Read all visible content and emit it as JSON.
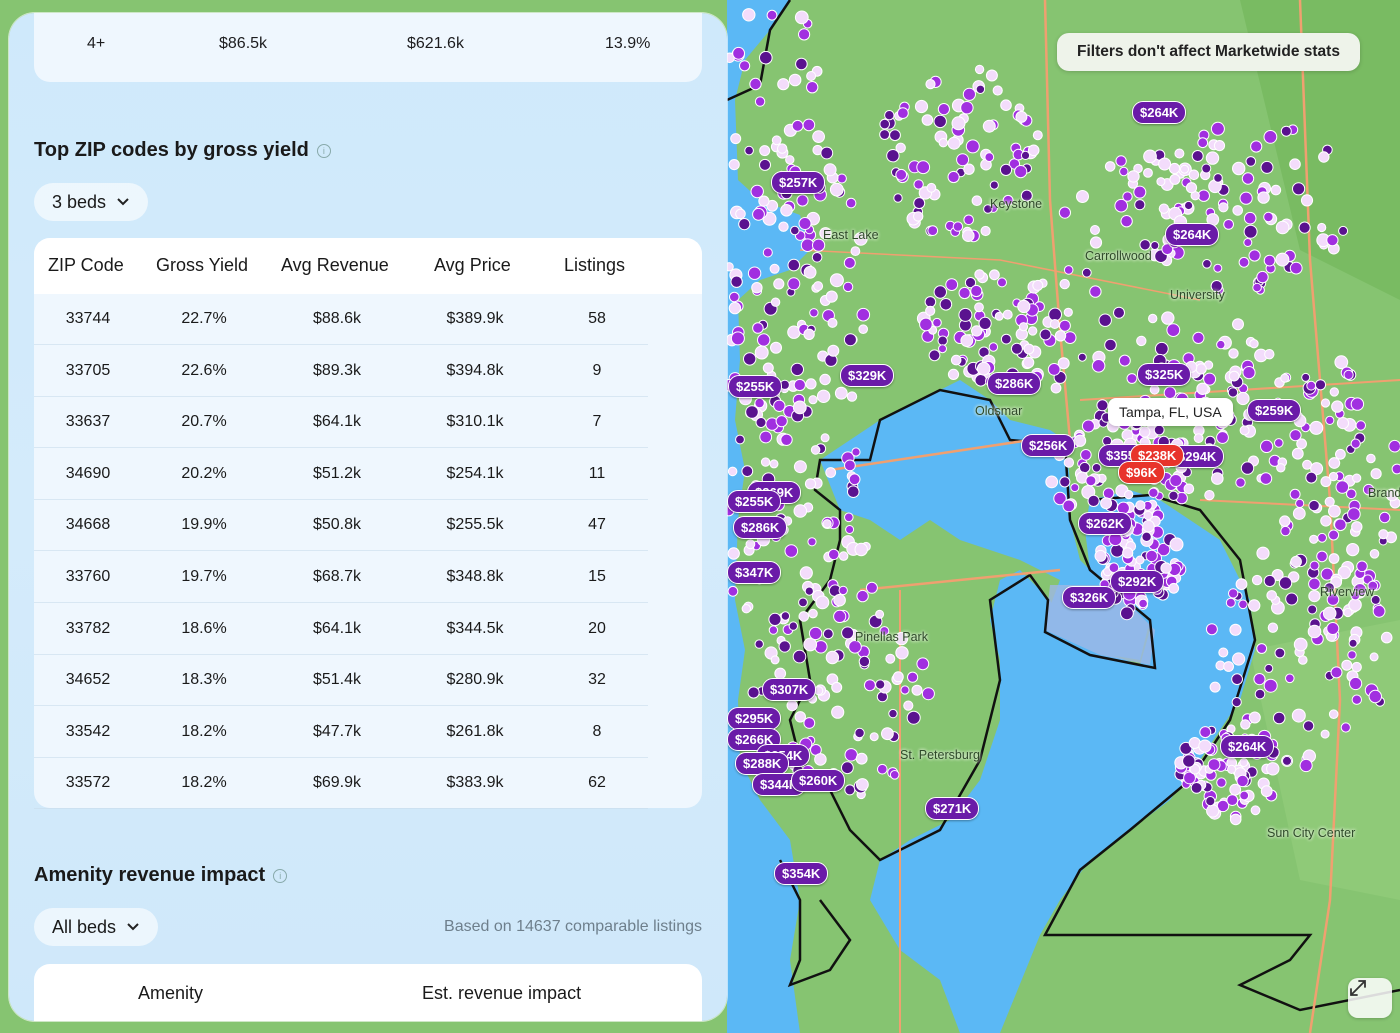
{
  "map": {
    "filters_note": "Filters don't affect Marketwide stats",
    "tampa_label": "Tampa, FL, USA",
    "places": [
      {
        "name": "East Lake"
      },
      {
        "name": "Keystone"
      },
      {
        "name": "Carrollwood"
      },
      {
        "name": "University"
      },
      {
        "name": "Oldsmar"
      },
      {
        "name": "Pinellas Park"
      },
      {
        "name": "St. Petersburg"
      },
      {
        "name": "Riverview"
      },
      {
        "name": "Brandon"
      },
      {
        "name": "Sun City Center"
      }
    ],
    "pins": [
      {
        "label": "$264K"
      },
      {
        "label": "$257K"
      },
      {
        "label": "$264K"
      },
      {
        "label": "$255K"
      },
      {
        "label": "$329K"
      },
      {
        "label": "$286K"
      },
      {
        "label": "$325K"
      },
      {
        "label": "$259K"
      },
      {
        "label": "$256K"
      },
      {
        "label": "$238K"
      },
      {
        "label": "$96K"
      },
      {
        "label": "$355K"
      },
      {
        "label": "$294K"
      },
      {
        "label": "$269K"
      },
      {
        "label": "$255K"
      },
      {
        "label": "$286K"
      },
      {
        "label": "$262K"
      },
      {
        "label": "$347K"
      },
      {
        "label": "$292K"
      },
      {
        "label": "$326K"
      },
      {
        "label": "$307K"
      },
      {
        "label": "$295K"
      },
      {
        "label": "$266K"
      },
      {
        "label": "$254K"
      },
      {
        "label": "$288K"
      },
      {
        "label": "$344K"
      },
      {
        "label": "$260K"
      },
      {
        "label": "$271K"
      },
      {
        "label": "$264K"
      },
      {
        "label": "$354K"
      }
    ],
    "colors": {
      "water": "#5bb8f5",
      "land": "#7ec36a",
      "pin": "#6a1ba8",
      "hot_pin": "#e8332b"
    }
  },
  "prev_table": {
    "row": {
      "beds": "4+",
      "revenue": "$86.5k",
      "price": "$621.6k",
      "yield": "13.9%"
    }
  },
  "zip_section": {
    "title": "Top ZIP codes by gross yield",
    "filter": "3 beds",
    "columns": [
      "ZIP Code",
      "Gross Yield",
      "Avg Revenue",
      "Avg Price",
      "Listings"
    ],
    "rows": [
      [
        "33744",
        "22.7%",
        "$88.6k",
        "$389.9k",
        "58"
      ],
      [
        "33705",
        "22.6%",
        "$89.3k",
        "$394.8k",
        "9"
      ],
      [
        "33637",
        "20.7%",
        "$64.1k",
        "$310.1k",
        "7"
      ],
      [
        "34690",
        "20.2%",
        "$51.2k",
        "$254.1k",
        "11"
      ],
      [
        "34668",
        "19.9%",
        "$50.8k",
        "$255.5k",
        "47"
      ],
      [
        "33760",
        "19.7%",
        "$68.7k",
        "$348.8k",
        "15"
      ],
      [
        "33782",
        "18.6%",
        "$64.1k",
        "$344.5k",
        "20"
      ],
      [
        "34652",
        "18.3%",
        "$51.4k",
        "$280.9k",
        "32"
      ],
      [
        "33542",
        "18.2%",
        "$47.7k",
        "$261.8k",
        "8"
      ],
      [
        "33572",
        "18.2%",
        "$69.9k",
        "$383.9k",
        "62"
      ]
    ]
  },
  "amenity_section": {
    "title": "Amenity revenue impact",
    "filter": "All beds",
    "based_on": "Based on 14637 comparable listings",
    "columns": [
      "Amenity",
      "Est. revenue impact"
    ]
  }
}
